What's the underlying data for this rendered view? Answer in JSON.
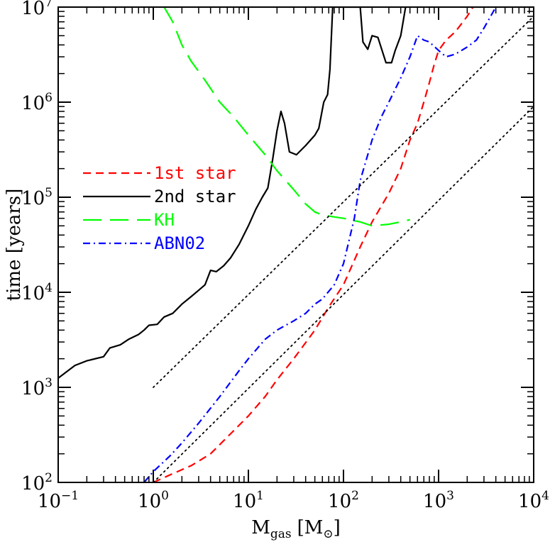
{
  "chart_data": {
    "type": "line",
    "xlabel": "M",
    "xlabel_sub": "gas",
    "xlabel_unit_open": "[M",
    "xlabel_unit_sub": "⊙",
    "xlabel_unit_close": "]",
    "ylabel": "time [years]",
    "xscale": "log",
    "yscale": "log",
    "xlim": [
      0.1,
      10000
    ],
    "ylim": [
      100,
      10000000
    ],
    "x_ticks": [
      {
        "base": "10",
        "exp": "−1",
        "value": 0.1
      },
      {
        "base": "10",
        "exp": "0",
        "value": 1
      },
      {
        "base": "10",
        "exp": "1",
        "value": 10
      },
      {
        "base": "10",
        "exp": "2",
        "value": 100
      },
      {
        "base": "10",
        "exp": "3",
        "value": 1000
      },
      {
        "base": "10",
        "exp": "4",
        "value": 10000
      }
    ],
    "y_ticks": [
      {
        "base": "10",
        "exp": "2",
        "value": 100
      },
      {
        "base": "10",
        "exp": "3",
        "value": 1000
      },
      {
        "base": "10",
        "exp": "4",
        "value": 10000
      },
      {
        "base": "10",
        "exp": "5",
        "value": 100000
      },
      {
        "base": "10",
        "exp": "6",
        "value": 1000000
      },
      {
        "base": "10",
        "exp": "7",
        "value": 10000000
      }
    ],
    "grid": false,
    "legend_position": "center-left",
    "series": [
      {
        "name": "1st star",
        "color": "#ff0000",
        "style": "dashed",
        "points": [
          [
            1.0,
            100
          ],
          [
            1.5,
            120
          ],
          [
            2.5,
            150
          ],
          [
            4,
            200
          ],
          [
            6,
            300
          ],
          [
            10,
            500
          ],
          [
            15,
            800
          ],
          [
            20,
            1200
          ],
          [
            30,
            2000
          ],
          [
            50,
            4000
          ],
          [
            70,
            7000
          ],
          [
            100,
            12000
          ],
          [
            150,
            30000
          ],
          [
            200,
            55000
          ],
          [
            300,
            110000
          ],
          [
            400,
            200000
          ],
          [
            500,
            400000
          ],
          [
            600,
            600000
          ],
          [
            700,
            1000000
          ],
          [
            800,
            1600000
          ],
          [
            900,
            2500000
          ],
          [
            1000,
            3500000
          ],
          [
            1200,
            4500000
          ],
          [
            1500,
            5500000
          ],
          [
            2000,
            8000000
          ],
          [
            2300,
            10000000
          ]
        ]
      },
      {
        "name": "2nd star",
        "color": "#000000",
        "style": "solid",
        "points": [
          [
            0.1,
            1250
          ],
          [
            0.15,
            1700
          ],
          [
            0.2,
            1900
          ],
          [
            0.3,
            2100
          ],
          [
            0.35,
            2600
          ],
          [
            0.45,
            2800
          ],
          [
            0.55,
            3200
          ],
          [
            0.7,
            3600
          ],
          [
            0.8,
            4000
          ],
          [
            0.9,
            4500
          ],
          [
            1.1,
            4600
          ],
          [
            1.3,
            5500
          ],
          [
            1.6,
            6000
          ],
          [
            2.0,
            7500
          ],
          [
            2.5,
            9000
          ],
          [
            3.0,
            10500
          ],
          [
            3.5,
            12000
          ],
          [
            4.0,
            17000
          ],
          [
            4.6,
            16500
          ],
          [
            5.5,
            19000
          ],
          [
            6.5,
            23000
          ],
          [
            8,
            32000
          ],
          [
            10,
            50000
          ],
          [
            12,
            75000
          ],
          [
            14,
            100000
          ],
          [
            16,
            125000
          ],
          [
            18,
            250000
          ],
          [
            20,
            500000
          ],
          [
            22,
            800000
          ],
          [
            24,
            600000
          ],
          [
            27,
            300000
          ],
          [
            32,
            280000
          ],
          [
            40,
            350000
          ],
          [
            50,
            450000
          ],
          [
            55,
            530000
          ],
          [
            62,
            1000000
          ],
          [
            68,
            1200000
          ],
          [
            72,
            2200000
          ],
          [
            77,
            10000000
          ],
          [
            150,
            10000000
          ],
          [
            160,
            4300000
          ],
          [
            180,
            3600000
          ],
          [
            200,
            5000000
          ],
          [
            230,
            4800000
          ],
          [
            280,
            2600000
          ],
          [
            320,
            2600000
          ],
          [
            350,
            3500000
          ],
          [
            400,
            5000000
          ],
          [
            450,
            10000000
          ]
        ]
      },
      {
        "name": "KH",
        "color": "#00ff00",
        "style": "longdash",
        "points": [
          [
            1.3,
            10000000
          ],
          [
            1.6,
            7000000
          ],
          [
            2.0,
            4000000
          ],
          [
            2.5,
            2700000
          ],
          [
            3.5,
            1700000
          ],
          [
            5,
            1000000
          ],
          [
            7,
            700000
          ],
          [
            10,
            450000
          ],
          [
            15,
            280000
          ],
          [
            20,
            190000
          ],
          [
            30,
            120000
          ],
          [
            40,
            85000
          ],
          [
            50,
            70000
          ],
          [
            60,
            65000
          ],
          [
            80,
            62000
          ],
          [
            100,
            60000
          ],
          [
            150,
            55000
          ],
          [
            200,
            50000
          ],
          [
            300,
            52000
          ],
          [
            400,
            55000
          ],
          [
            500,
            58000
          ]
        ]
      },
      {
        "name": "ABN02",
        "color": "#0000ff",
        "style": "dashdot",
        "points": [
          [
            0.8,
            100
          ],
          [
            1.0,
            130
          ],
          [
            1.5,
            190
          ],
          [
            2,
            260
          ],
          [
            3,
            420
          ],
          [
            5,
            800
          ],
          [
            8,
            1500
          ],
          [
            10,
            2000
          ],
          [
            15,
            3200
          ],
          [
            20,
            4000
          ],
          [
            30,
            5000
          ],
          [
            40,
            6000
          ],
          [
            50,
            7500
          ],
          [
            60,
            8500
          ],
          [
            80,
            12000
          ],
          [
            100,
            20000
          ],
          [
            130,
            60000
          ],
          [
            150,
            150000
          ],
          [
            200,
            400000
          ],
          [
            250,
            700000
          ],
          [
            300,
            1000000
          ],
          [
            400,
            1800000
          ],
          [
            500,
            3000000
          ],
          [
            600,
            5000000
          ],
          [
            700,
            4500000
          ],
          [
            800,
            4300000
          ],
          [
            1000,
            3500000
          ],
          [
            1200,
            3000000
          ],
          [
            1500,
            3200000
          ],
          [
            2000,
            3800000
          ],
          [
            2500,
            4500000
          ],
          [
            3000,
            6000000
          ],
          [
            4000,
            10000000
          ]
        ]
      },
      {
        "name": "",
        "color": "#000000",
        "style": "dotted",
        "points": [
          [
            1,
            1000
          ],
          [
            10000,
            8000000
          ]
        ]
      },
      {
        "name": "",
        "color": "#000000",
        "style": "dotted",
        "points": [
          [
            1,
            100
          ],
          [
            10000,
            900000
          ]
        ]
      }
    ]
  }
}
